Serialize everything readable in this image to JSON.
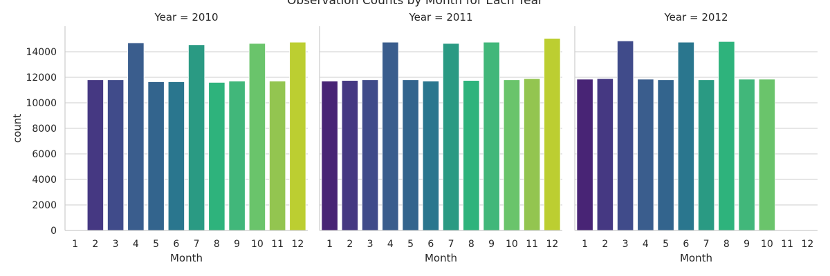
{
  "chart_data": {
    "type": "bar",
    "title": "Observation Counts by Month for Each Year",
    "xlabel": "Month",
    "ylabel": "count",
    "ylim": [
      0,
      16000
    ],
    "yticks": [
      0,
      2000,
      4000,
      6000,
      8000,
      10000,
      12000,
      14000
    ],
    "grid": "horizontal",
    "legend": "none",
    "categories": [
      "1",
      "2",
      "3",
      "4",
      "5",
      "6",
      "7",
      "8",
      "9",
      "10",
      "11",
      "12"
    ],
    "bar_colors": [
      "#482475",
      "#453882",
      "#404b8a",
      "#3a5d8d",
      "#33648d",
      "#2a768e",
      "#2a9a83",
      "#2eb37c",
      "#41b77a",
      "#6ac46b",
      "#93c550",
      "#bcce31"
    ],
    "panels": [
      {
        "title": "Year = 2010",
        "values": [
          0,
          11800,
          11800,
          14700,
          11650,
          11650,
          14550,
          11600,
          11700,
          14650,
          11700,
          14750
        ]
      },
      {
        "title": "Year = 2011",
        "values": [
          11700,
          11750,
          11800,
          14750,
          11800,
          11700,
          14650,
          11750,
          14750,
          11800,
          11900,
          15050
        ]
      },
      {
        "title": "Year = 2012",
        "values": [
          11850,
          11900,
          14850,
          11850,
          11800,
          14750,
          11800,
          14800,
          11850,
          11850,
          0,
          0
        ]
      }
    ]
  }
}
